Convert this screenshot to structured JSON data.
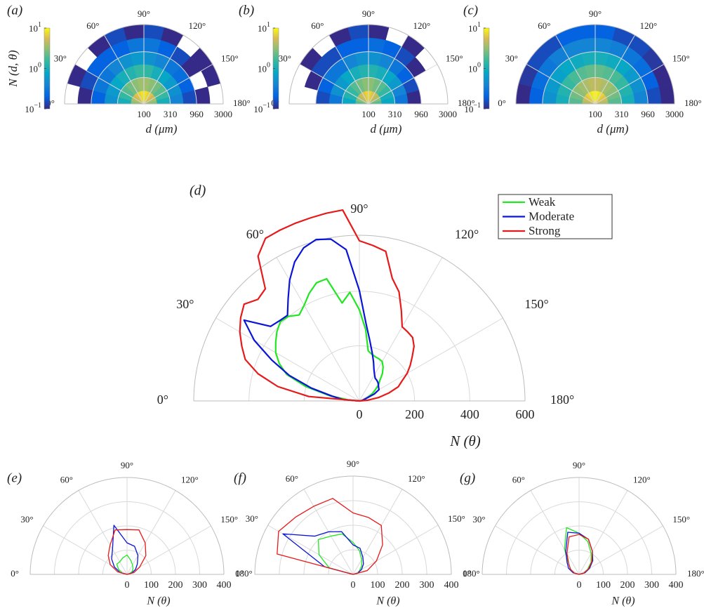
{
  "chart_data": [
    {
      "type": "polar-heatmap",
      "title": "(a)",
      "xlabel": "d (μm)",
      "colorbar_label": "N (d, θ)",
      "colormap": "parula",
      "rlim": [
        100,
        3000
      ],
      "rticks": [
        100,
        310,
        960,
        3000
      ],
      "log_r": true,
      "clim": [
        0.1,
        10
      ],
      "log_c": true,
      "cticks": [
        {
          "value": 0.1,
          "label": "10",
          "exponent": "−1"
        },
        {
          "value": 1,
          "label": "10",
          "exponent": "0"
        },
        {
          "value": 10,
          "label": "10",
          "exponent": "1"
        }
      ],
      "thetaticks": [
        {
          "value": 0,
          "label": "0°"
        },
        {
          "value": 30,
          "label": "30°"
        },
        {
          "value": 60,
          "label": "60°"
        },
        {
          "value": 90,
          "label": "90°"
        },
        {
          "value": 120,
          "label": "120°"
        },
        {
          "value": 150,
          "label": "150°"
        },
        {
          "value": 180,
          "label": "180°"
        }
      ],
      "theta_edges": [
        0,
        15,
        30,
        45,
        60,
        75,
        90,
        105,
        120,
        135,
        150,
        165,
        180
      ],
      "d_edges": [
        100,
        176,
        310,
        545,
        960,
        1700,
        3000
      ],
      "values": [
        [
          3,
          1,
          0.5,
          0.2,
          0.1,
          null
        ],
        [
          4,
          1.5,
          0.6,
          0.3,
          0.15,
          0.1
        ],
        [
          5,
          2,
          0.8,
          0.3,
          0.2,
          null
        ],
        [
          6,
          2.5,
          1,
          0.4,
          0.2,
          0.1
        ],
        [
          7,
          3,
          1.2,
          0.5,
          0.2,
          0.15
        ],
        [
          8,
          3.5,
          1.5,
          0.6,
          0.3,
          0.1
        ],
        [
          8,
          3.5,
          1.4,
          0.5,
          0.3,
          0.15
        ],
        [
          7,
          3,
          1,
          0.4,
          0.2,
          0.1
        ],
        [
          6,
          2.5,
          0.8,
          0.3,
          0.15,
          null
        ],
        [
          5,
          2,
          0.6,
          0.25,
          0.1,
          0.1
        ],
        [
          4,
          1.5,
          0.5,
          0.2,
          null,
          0.1
        ],
        [
          3,
          1,
          0.4,
          0.15,
          0.1,
          null
        ]
      ]
    },
    {
      "type": "polar-heatmap",
      "title": "(b)",
      "xlabel": "d (μm)",
      "colorbar_label": null,
      "colormap": "parula",
      "rlim": [
        100,
        3000
      ],
      "rticks": [
        100,
        310,
        960,
        3000
      ],
      "log_r": true,
      "clim": [
        0.1,
        10
      ],
      "log_c": true,
      "cticks": [
        {
          "value": 0.1,
          "label": "10",
          "exponent": "−1"
        },
        {
          "value": 1,
          "label": "10",
          "exponent": "0"
        },
        {
          "value": 10,
          "label": "10",
          "exponent": "1"
        }
      ],
      "thetaticks": [
        {
          "value": 0,
          "label": "0°"
        },
        {
          "value": 30,
          "label": "30°"
        },
        {
          "value": 60,
          "label": "60°"
        },
        {
          "value": 90,
          "label": "90°"
        },
        {
          "value": 120,
          "label": "120°"
        },
        {
          "value": 150,
          "label": "150°"
        },
        {
          "value": 180,
          "label": "180°"
        }
      ],
      "theta_edges": [
        0,
        15,
        30,
        45,
        60,
        75,
        90,
        105,
        120,
        135,
        150,
        165,
        180
      ],
      "d_edges": [
        100,
        176,
        310,
        545,
        960,
        1700,
        3000
      ],
      "values": [
        [
          2,
          0.8,
          0.3,
          0.15,
          null,
          null
        ],
        [
          3,
          1.2,
          0.5,
          0.2,
          0.1,
          null
        ],
        [
          4,
          1.5,
          0.6,
          0.3,
          0.15,
          0.1
        ],
        [
          5,
          2,
          0.8,
          0.3,
          0.15,
          null
        ],
        [
          6,
          2.5,
          1,
          0.4,
          0.2,
          0.1
        ],
        [
          7,
          3,
          1.2,
          0.5,
          0.2,
          0.15
        ],
        [
          7,
          3,
          1.2,
          0.5,
          0.25,
          0.1
        ],
        [
          6,
          2.5,
          1,
          0.4,
          0.2,
          null
        ],
        [
          5,
          2,
          0.8,
          0.3,
          0.15,
          0.1
        ],
        [
          4,
          1.5,
          0.6,
          0.2,
          0.1,
          null
        ],
        [
          3,
          1,
          0.4,
          0.15,
          null,
          null
        ],
        [
          2,
          0.8,
          0.3,
          0.1,
          null,
          null
        ]
      ]
    },
    {
      "type": "polar-heatmap",
      "title": "(c)",
      "xlabel": "d (μm)",
      "colorbar_label": null,
      "colormap": "parula",
      "rlim": [
        100,
        3000
      ],
      "rticks": [
        100,
        310,
        960,
        3000
      ],
      "log_r": true,
      "clim": [
        0.1,
        10
      ],
      "log_c": true,
      "cticks": [
        {
          "value": 0.1,
          "label": "10",
          "exponent": "−1"
        },
        {
          "value": 1,
          "label": "10",
          "exponent": "0"
        },
        {
          "value": 10,
          "label": "10",
          "exponent": "1"
        }
      ],
      "thetaticks": [
        {
          "value": 0,
          "label": "0°"
        },
        {
          "value": 30,
          "label": "30°"
        },
        {
          "value": 60,
          "label": "60°"
        },
        {
          "value": 90,
          "label": "90°"
        },
        {
          "value": 120,
          "label": "120°"
        },
        {
          "value": 150,
          "label": "150°"
        },
        {
          "value": 180,
          "label": "180°"
        }
      ],
      "theta_edges": [
        0,
        15,
        30,
        45,
        60,
        75,
        90,
        105,
        120,
        135,
        150,
        165,
        180
      ],
      "d_edges": [
        100,
        176,
        310,
        545,
        960,
        1700,
        3000
      ],
      "values": [
        [
          4,
          2,
          1,
          0.5,
          0.2,
          0.1
        ],
        [
          5,
          2.5,
          1.2,
          0.6,
          0.25,
          0.12
        ],
        [
          6,
          3,
          1.5,
          0.7,
          0.3,
          0.15
        ],
        [
          7,
          3.5,
          1.8,
          0.8,
          0.35,
          0.15
        ],
        [
          8,
          4,
          2,
          0.9,
          0.4,
          0.2
        ],
        [
          9,
          4.5,
          2.2,
          1,
          0.4,
          0.2
        ],
        [
          9,
          4.5,
          2.2,
          1,
          0.4,
          0.2
        ],
        [
          8,
          4,
          2,
          0.9,
          0.35,
          0.15
        ],
        [
          7,
          3.5,
          1.8,
          0.8,
          0.3,
          0.15
        ],
        [
          6,
          3,
          1.5,
          0.6,
          0.25,
          0.12
        ],
        [
          5,
          2.5,
          1.2,
          0.5,
          0.2,
          0.1
        ],
        [
          4,
          2,
          1,
          0.4,
          0.15,
          0.1
        ]
      ]
    },
    {
      "type": "polar-line",
      "title": "(d)",
      "xlabel": "N (θ)",
      "legend": "upper right",
      "rlim": [
        0,
        600
      ],
      "rticks": [
        0,
        200,
        400,
        600
      ],
      "thetaticks": [
        {
          "value": 0,
          "label": "0°"
        },
        {
          "value": 30,
          "label": "30°"
        },
        {
          "value": 60,
          "label": "60°"
        },
        {
          "value": 90,
          "label": "90°"
        },
        {
          "value": 120,
          "label": "120°"
        },
        {
          "value": 150,
          "label": "150°"
        },
        {
          "value": 180,
          "label": "180°"
        }
      ],
      "x": [
        0,
        5,
        10,
        15,
        20,
        25,
        30,
        35,
        40,
        45,
        50,
        55,
        60,
        65,
        70,
        75,
        80,
        85,
        90,
        95,
        100,
        105,
        110,
        115,
        120,
        125,
        130,
        135,
        140,
        145,
        150,
        155,
        160,
        165,
        170,
        175,
        180
      ],
      "series": [
        {
          "name": "Weak",
          "color": "#22e622",
          "values": [
            0,
            40,
            110,
            200,
            280,
            320,
            350,
            370,
            390,
            405,
            400,
            380,
            400,
            430,
            455,
            458,
            360,
            395,
            330,
            260,
            184,
            175,
            170,
            168,
            165,
            150,
            130,
            105,
            90,
            70,
            55,
            36,
            25,
            15,
            8,
            3,
            0
          ]
        },
        {
          "name": "Moderate",
          "color": "#0a14d6",
          "values": [
            0,
            60,
            100,
            180,
            270,
            350,
            440,
            510,
            420,
            410,
            405,
            450,
            505,
            555,
            590,
            605,
            595,
            550,
            400,
            280,
            220,
            180,
            150,
            125,
            110,
            100,
            98,
            95,
            90,
            85,
            82,
            60,
            25,
            15,
            10,
            5,
            0
          ]
        },
        {
          "name": "Strong",
          "color": "#e61a1a",
          "values": [
            0,
            184,
            300,
            380,
            440,
            470,
            500,
            525,
            545,
            520,
            530,
            640,
            680,
            682,
            684,
            686,
            690,
            694,
            580,
            565,
            550,
            460,
            420,
            360,
            310,
            305,
            300,
            280,
            250,
            225,
            200,
            170,
            150,
            110,
            70,
            30,
            0
          ]
        }
      ]
    },
    {
      "type": "polar-line",
      "title": "(e)",
      "xlabel": "N (θ)",
      "rlim": [
        0,
        400
      ],
      "rticks": [
        0,
        100,
        200,
        300,
        400
      ],
      "thetaticks": [
        {
          "value": 0,
          "label": "0°"
        },
        {
          "value": 30,
          "label": "30°"
        },
        {
          "value": 60,
          "label": "60°"
        },
        {
          "value": 90,
          "label": "90°"
        },
        {
          "value": 120,
          "label": "120°"
        },
        {
          "value": 150,
          "label": "150°"
        },
        {
          "value": 180,
          "label": "180°"
        }
      ],
      "x": [
        0,
        15,
        30,
        45,
        60,
        75,
        90,
        105,
        120,
        135,
        150,
        165,
        180
      ],
      "series": [
        {
          "color": "#22e622",
          "values": [
            0,
            20,
            40,
            60,
            60,
            70,
            80,
            60,
            45,
            35,
            25,
            10,
            0
          ]
        },
        {
          "color": "#0a14d6",
          "values": [
            0,
            30,
            60,
            90,
            120,
            210,
            130,
            120,
            90,
            60,
            40,
            20,
            0
          ]
        },
        {
          "color": "#e61a1a",
          "values": [
            0,
            40,
            80,
            110,
            140,
            190,
            185,
            190,
            150,
            110,
            60,
            30,
            0
          ]
        }
      ]
    },
    {
      "type": "polar-line",
      "title": "(f)",
      "xlabel": "N (θ)",
      "rlim": [
        0,
        400
      ],
      "rticks": [
        0,
        100,
        200,
        300,
        400
      ],
      "thetaticks": [
        {
          "value": 0,
          "label": "0°"
        },
        {
          "value": 30,
          "label": "30°"
        },
        {
          "value": 60,
          "label": "60°"
        },
        {
          "value": 90,
          "label": "90°"
        },
        {
          "value": 120,
          "label": "120°"
        },
        {
          "value": 150,
          "label": "150°"
        },
        {
          "value": 180,
          "label": "180°"
        }
      ],
      "x": [
        0,
        15,
        30,
        45,
        60,
        75,
        90,
        105,
        120,
        135,
        150,
        165,
        180
      ],
      "series": [
        {
          "color": "#22e622",
          "values": [
            0,
            100,
            160,
            200,
            180,
            170,
            130,
            100,
            70,
            50,
            30,
            20,
            0
          ]
        },
        {
          "color": "#0a14d6",
          "values": [
            0,
            120,
            330,
            220,
            200,
            180,
            120,
            110,
            80,
            60,
            40,
            20,
            0
          ]
        },
        {
          "color": "#e61a1a",
          "values": [
            0,
            320,
            350,
            330,
            320,
            320,
            250,
            240,
            230,
            170,
            110,
            60,
            0
          ]
        }
      ]
    },
    {
      "type": "polar-line",
      "title": "(g)",
      "xlabel": "N (θ)",
      "rlim": [
        0,
        400
      ],
      "rticks": [
        0,
        100,
        200,
        300,
        400
      ],
      "thetaticks": [
        {
          "value": 0,
          "label": "0°"
        },
        {
          "value": 30,
          "label": "30°"
        },
        {
          "value": 60,
          "label": "60°"
        },
        {
          "value": 90,
          "label": "90°"
        },
        {
          "value": 120,
          "label": "120°"
        },
        {
          "value": 150,
          "label": "150°"
        },
        {
          "value": 180,
          "label": "180°"
        }
      ],
      "x": [
        0,
        15,
        30,
        45,
        60,
        75,
        90,
        105,
        120,
        135,
        150,
        165,
        180
      ],
      "series": [
        {
          "color": "#22e622",
          "values": [
            0,
            20,
            40,
            60,
            120,
            200,
            170,
            140,
            100,
            70,
            40,
            20,
            0
          ]
        },
        {
          "color": "#0a14d6",
          "values": [
            0,
            25,
            50,
            70,
            110,
            180,
            170,
            150,
            110,
            80,
            50,
            25,
            0
          ]
        },
        {
          "color": "#e61a1a",
          "values": [
            0,
            20,
            40,
            60,
            100,
            160,
            165,
            150,
            110,
            75,
            45,
            20,
            0
          ]
        }
      ]
    }
  ]
}
